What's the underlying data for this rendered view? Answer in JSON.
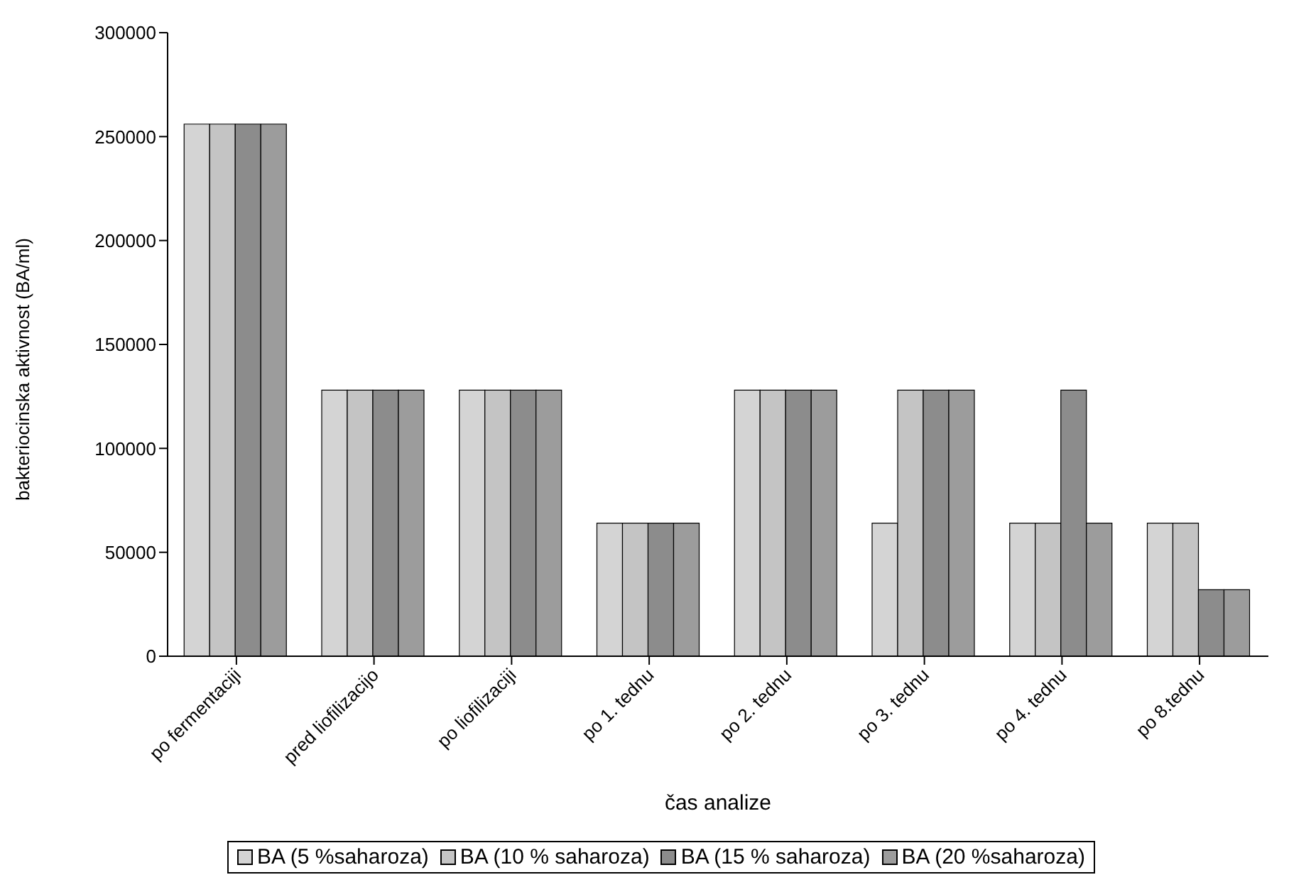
{
  "chart_data": {
    "type": "bar",
    "xlabel": "čas analize",
    "ylabel": "bakteriocinska aktivnost (BA/ml)",
    "categories": [
      "po fermentaciji",
      "pred liofilizacijo",
      "po liofilizaciji",
      "po 1. tednu",
      "po 2. tednu",
      "po 3. tednu",
      "po 4. tednu",
      "po 8.tednu"
    ],
    "series": [
      {
        "name": "BA (5 %saharoza)",
        "color": "#d4d4d4",
        "values": [
          256000,
          128000,
          128000,
          64000,
          128000,
          64000,
          64000,
          64000
        ]
      },
      {
        "name": "BA (10 % saharoza)",
        "color": "#c4c4c4",
        "values": [
          256000,
          128000,
          128000,
          64000,
          128000,
          128000,
          64000,
          64000
        ]
      },
      {
        "name": "BA (15 % saharoza)",
        "color": "#8c8c8c",
        "values": [
          256000,
          128000,
          128000,
          64000,
          128000,
          128000,
          128000,
          32000
        ]
      },
      {
        "name": "BA (20 %saharoza)",
        "color": "#9c9c9c",
        "values": [
          256000,
          128000,
          128000,
          64000,
          128000,
          128000,
          64000,
          32000
        ]
      }
    ],
    "ylim": [
      0,
      300000
    ],
    "yticks": [
      0,
      50000,
      100000,
      150000,
      200000,
      250000,
      300000
    ],
    "grid": false,
    "legend": "bottom"
  }
}
